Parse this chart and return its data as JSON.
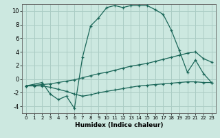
{
  "xlabel": "Humidex (Indice chaleur)",
  "background_color": "#cce8e0",
  "grid_color": "#aaccc4",
  "line_color": "#1a6658",
  "xlim": [
    -0.5,
    23.5
  ],
  "ylim": [
    -5,
    11
  ],
  "xticks": [
    0,
    1,
    2,
    3,
    4,
    5,
    6,
    7,
    8,
    9,
    10,
    11,
    12,
    13,
    14,
    15,
    16,
    17,
    18,
    19,
    20,
    21,
    22,
    23
  ],
  "yticks": [
    -4,
    -2,
    0,
    2,
    4,
    6,
    8,
    10
  ],
  "curve_main_x": [
    0,
    2,
    3,
    4,
    5,
    6,
    7,
    8,
    9,
    10,
    11,
    12,
    13,
    14,
    15,
    16,
    17,
    18,
    19,
    20,
    21,
    22,
    23
  ],
  "curve_main_y": [
    -1,
    -0.5,
    -2.2,
    -3.0,
    -2.5,
    -4.3,
    3.2,
    7.8,
    9.0,
    10.5,
    10.8,
    10.5,
    10.8,
    10.8,
    10.8,
    10.2,
    9.5,
    7.2,
    4.2,
    1.0,
    2.8,
    0.8,
    -0.5
  ],
  "curve_max_x": [
    0,
    1,
    2,
    3,
    4,
    5,
    6,
    7,
    8,
    9,
    10,
    11,
    12,
    13,
    14,
    15,
    16,
    17,
    18,
    19,
    20,
    21,
    22,
    23
  ],
  "curve_max_y": [
    -1.0,
    -0.9,
    -0.8,
    -0.7,
    -0.5,
    -0.3,
    -0.1,
    0.2,
    0.5,
    0.8,
    1.0,
    1.3,
    1.6,
    1.9,
    2.1,
    2.3,
    2.6,
    2.9,
    3.2,
    3.5,
    3.8,
    4.0,
    3.0,
    2.5
  ],
  "curve_min_x": [
    0,
    1,
    2,
    3,
    4,
    5,
    6,
    7,
    8,
    9,
    10,
    11,
    12,
    13,
    14,
    15,
    16,
    17,
    18,
    19,
    20,
    21,
    22,
    23
  ],
  "curve_min_y": [
    -1.0,
    -1.0,
    -1.0,
    -1.2,
    -1.5,
    -1.8,
    -2.2,
    -2.5,
    -2.3,
    -2.0,
    -1.8,
    -1.6,
    -1.4,
    -1.2,
    -1.0,
    -0.9,
    -0.8,
    -0.7,
    -0.6,
    -0.5,
    -0.4,
    -0.4,
    -0.5,
    -0.5
  ]
}
